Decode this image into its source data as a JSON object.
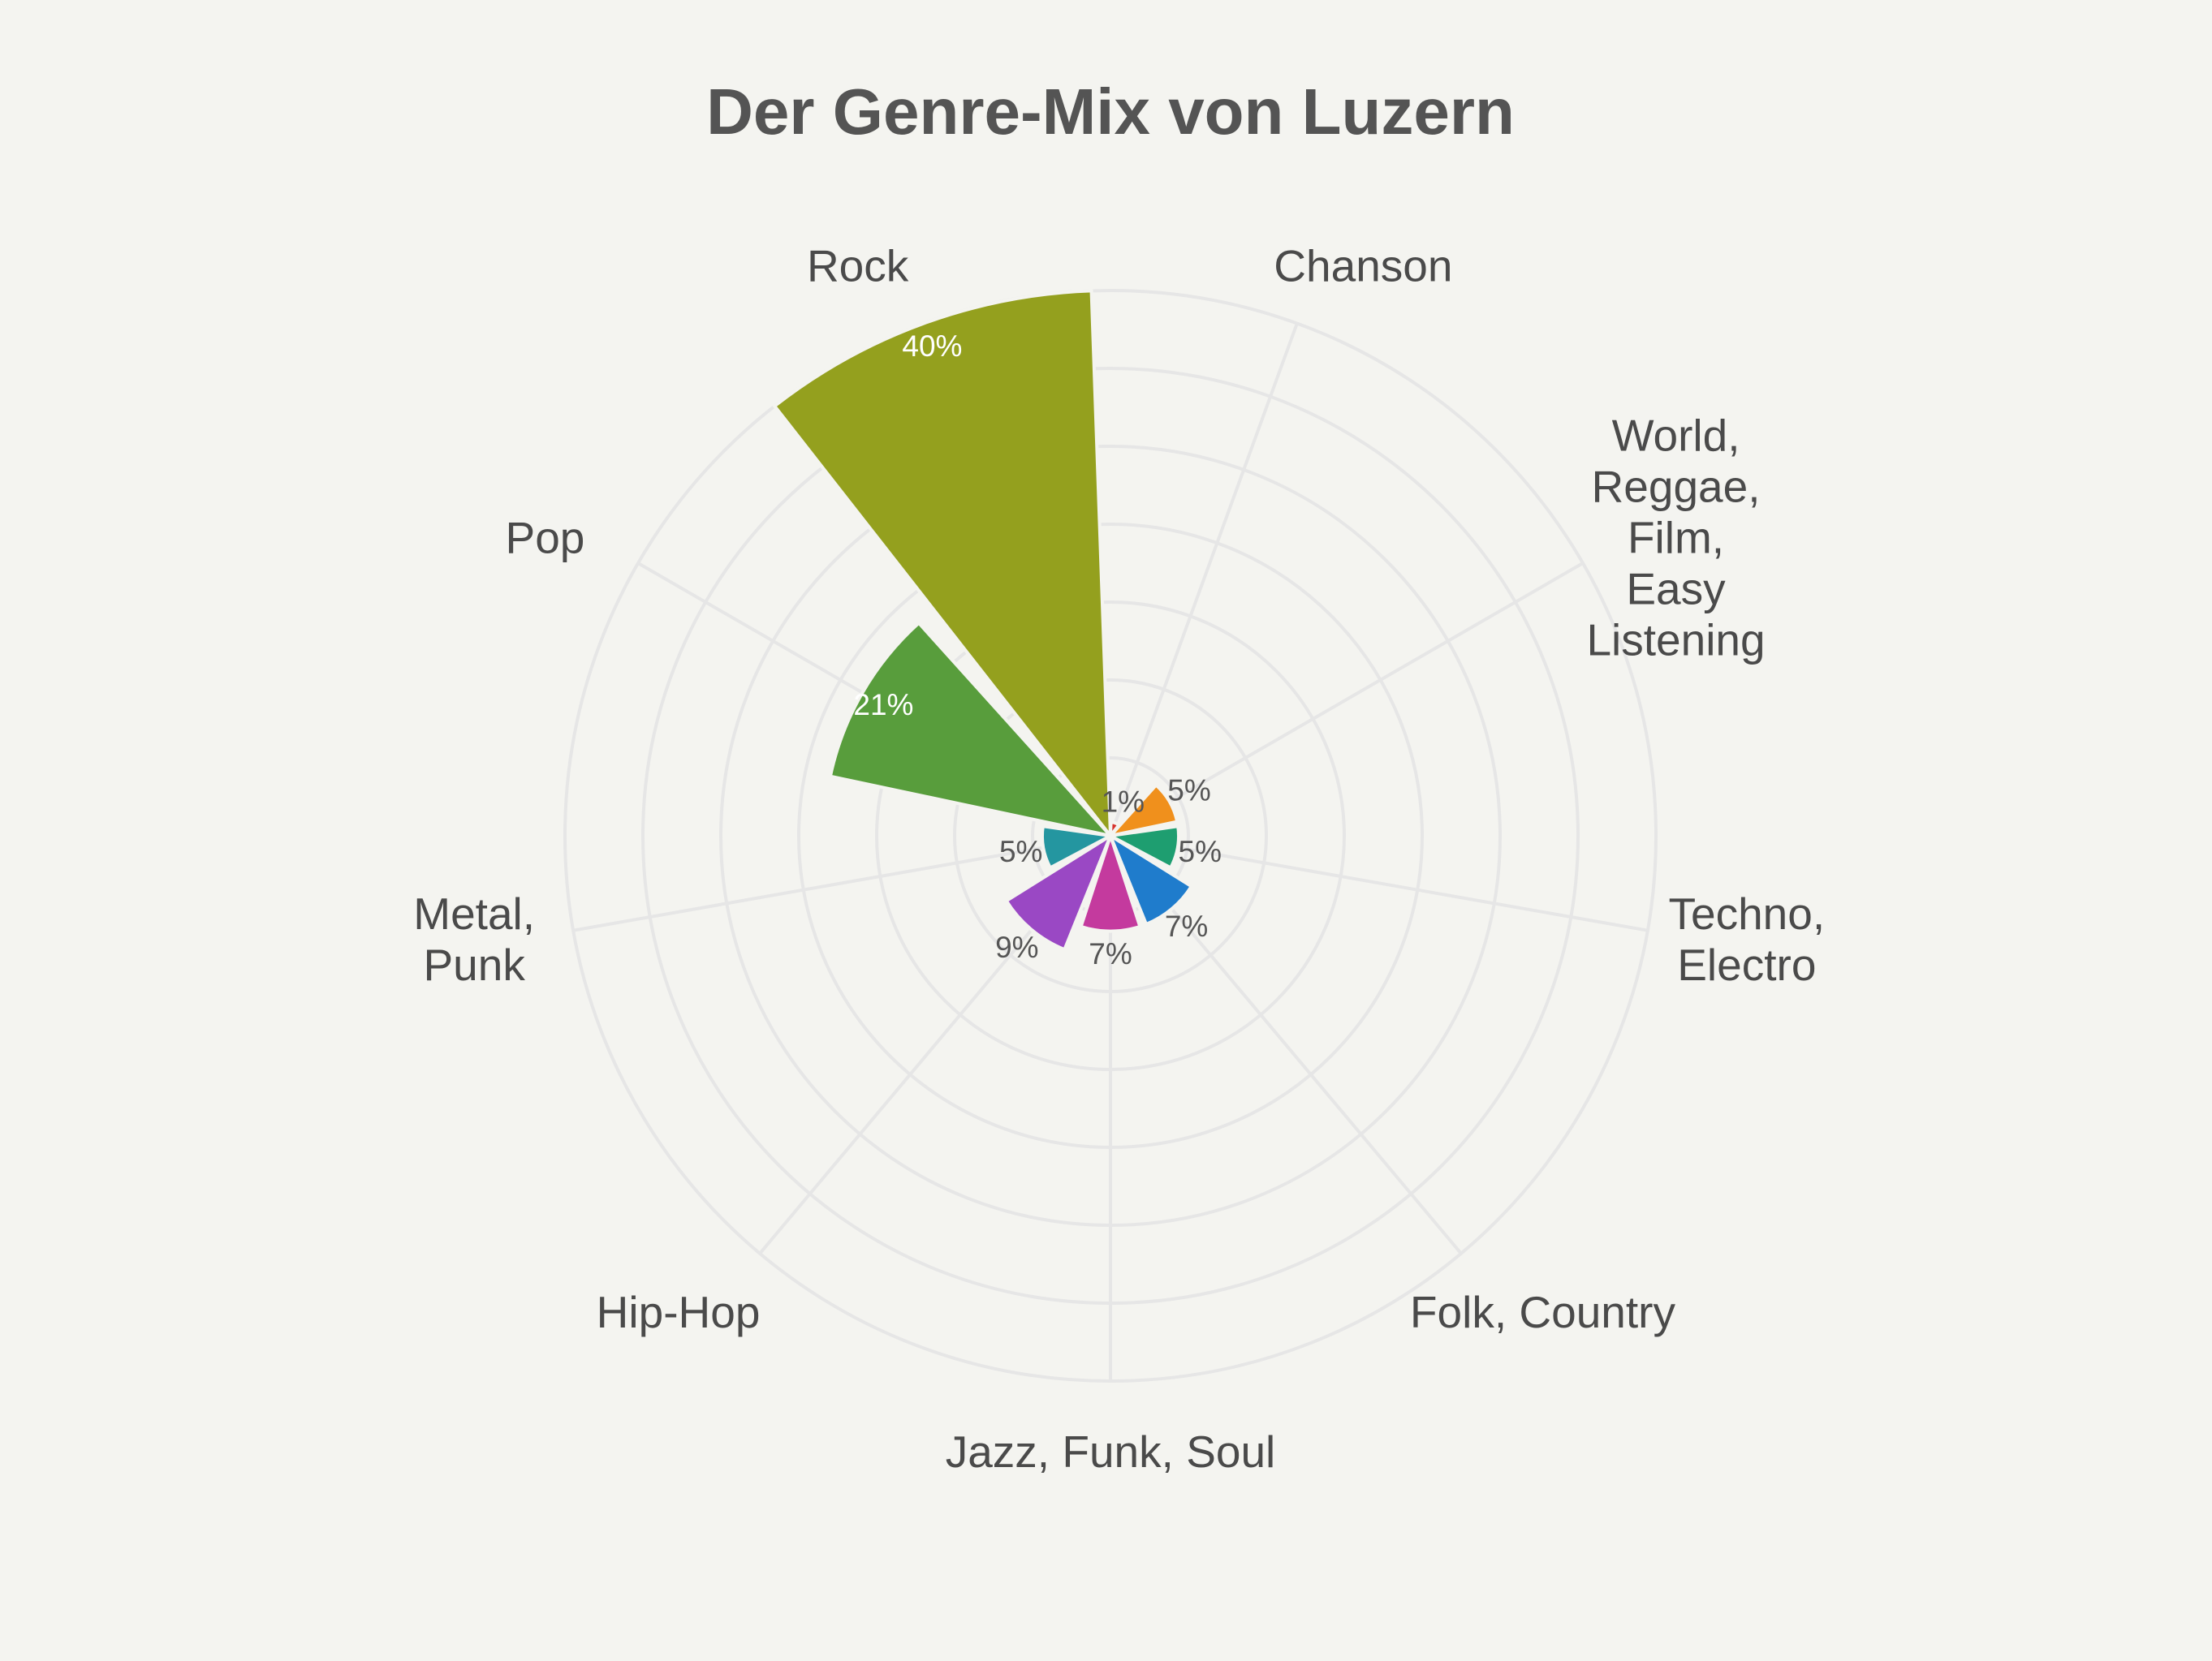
{
  "chart_data": {
    "type": "bar",
    "subtype": "polar",
    "title": "Der Genre-Mix von Luzern",
    "value_suffix": "%",
    "radial_range": [
      0,
      40
    ],
    "grid": true,
    "legend": "none",
    "categories": [
      "Chanson",
      "World, Reggae, Film, Easy Listening",
      "Techno, Electro",
      "Folk, Country",
      "Jazz, Funk, Soul",
      "Hip-Hop",
      "Metal, Punk",
      "Pop",
      "Rock"
    ],
    "category_label_lines": [
      [
        "Chanson"
      ],
      [
        "World,",
        "Reggae,",
        "Film,",
        "Easy",
        "Listening"
      ],
      [
        "Techno,",
        "Electro"
      ],
      [
        "Folk, Country"
      ],
      [
        "Jazz, Funk, Soul"
      ],
      [
        "Hip-Hop"
      ],
      [
        "Metal,",
        "Punk"
      ],
      [
        "Pop"
      ],
      [
        "Rock"
      ]
    ],
    "series": [
      {
        "values": [
          1,
          5,
          5,
          7,
          7,
          9,
          5,
          21,
          40
        ],
        "labels": [
          "1%",
          "5%",
          "5%",
          "7%",
          "7%",
          "9%",
          "5%",
          "21%",
          "40%"
        ],
        "colors": [
          "#d6312c",
          "#f0901c",
          "#1e9e70",
          "#1f7ccc",
          "#c43a9e",
          "#9a48c4",
          "#2496a0",
          "#589d3c",
          "#94a01e"
        ],
        "label_colors": [
          "#555555",
          "#555555",
          "#555555",
          "#555555",
          "#555555",
          "#555555",
          "#555555",
          "#ffffff",
          "#ffffff"
        ]
      }
    ]
  },
  "colors": {
    "background": "#f4f4f0",
    "grid": "#e6e6e6",
    "text": "#4a4a4a",
    "title": "#545454"
  }
}
